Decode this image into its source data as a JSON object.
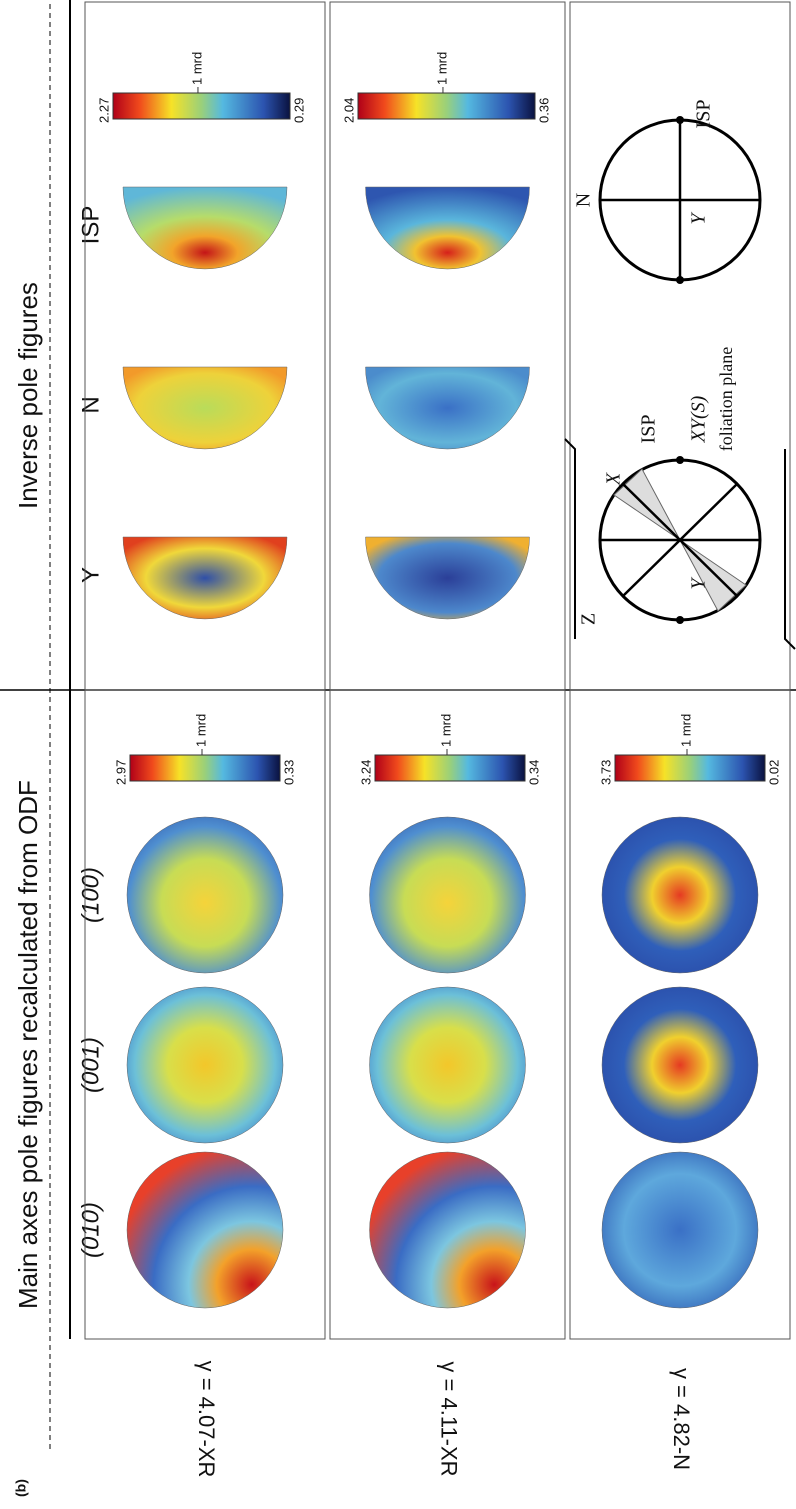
{
  "header": {
    "panel_label": "(b)",
    "title_left": "Main axes pole figures recalculated from ODF",
    "title_right": "Inverse pole figures"
  },
  "left_columns": [
    "(010)",
    "(001)",
    "(100)"
  ],
  "right_columns": [
    "Y",
    "N",
    "ISP"
  ],
  "rows": [
    {
      "label": "γ = 4.07-XR",
      "left_colorbar": {
        "max": 2.97,
        "mid": "1 mrd",
        "min": 0.33
      },
      "right_colorbar": {
        "max": 2.27,
        "mid": "1 mrd",
        "min": 0.29
      }
    },
    {
      "label": "γ = 4.11-XR",
      "left_colorbar": {
        "max": 3.24,
        "mid": "1 mrd",
        "min": 0.34
      },
      "right_colorbar": {
        "max": 2.04,
        "mid": "1 mrd",
        "min": 0.36
      }
    },
    {
      "label": "γ = 4.82-N",
      "left_colorbar": {
        "max": 3.73,
        "mid": "1 mrd",
        "min": 0.02
      }
    }
  ],
  "diagram_left": {
    "z": "Z",
    "x": "X",
    "isp": "ISP",
    "xys": "XY(S)",
    "foliation": "foliation plane",
    "y": "Y"
  },
  "diagram_right": {
    "n": "N",
    "isp": "ISP",
    "y": "Y"
  }
}
